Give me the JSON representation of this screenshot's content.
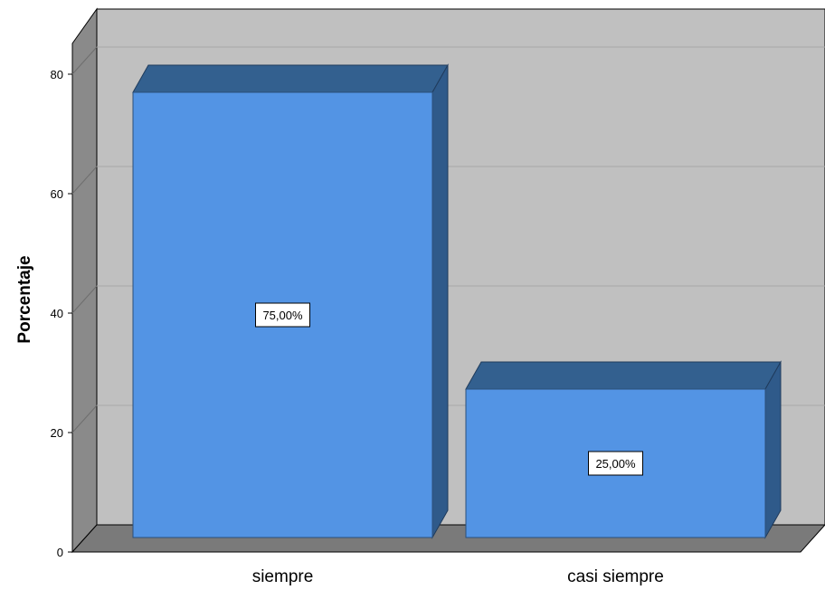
{
  "chart_data": {
    "type": "bar",
    "categories": [
      "siempre",
      "casi siempre"
    ],
    "values": [
      75,
      25
    ],
    "data_labels": [
      "75,00%",
      "25,00%"
    ],
    "title": "",
    "xlabel": "",
    "ylabel": "Porcentaje",
    "ylim": [
      0,
      85
    ],
    "yticks": [
      0,
      20,
      40,
      60,
      80
    ],
    "grid": true,
    "legend": "none",
    "style": "3d",
    "colors": {
      "bar_front": "#5394e4",
      "bar_top": "#33608f",
      "bar_side": "#2f5a8a",
      "back_wall": "#c0c0c0",
      "side_wall": "#8a8a8a",
      "floor": "#7a7a7a",
      "gridline": "#a8a8a8"
    }
  }
}
